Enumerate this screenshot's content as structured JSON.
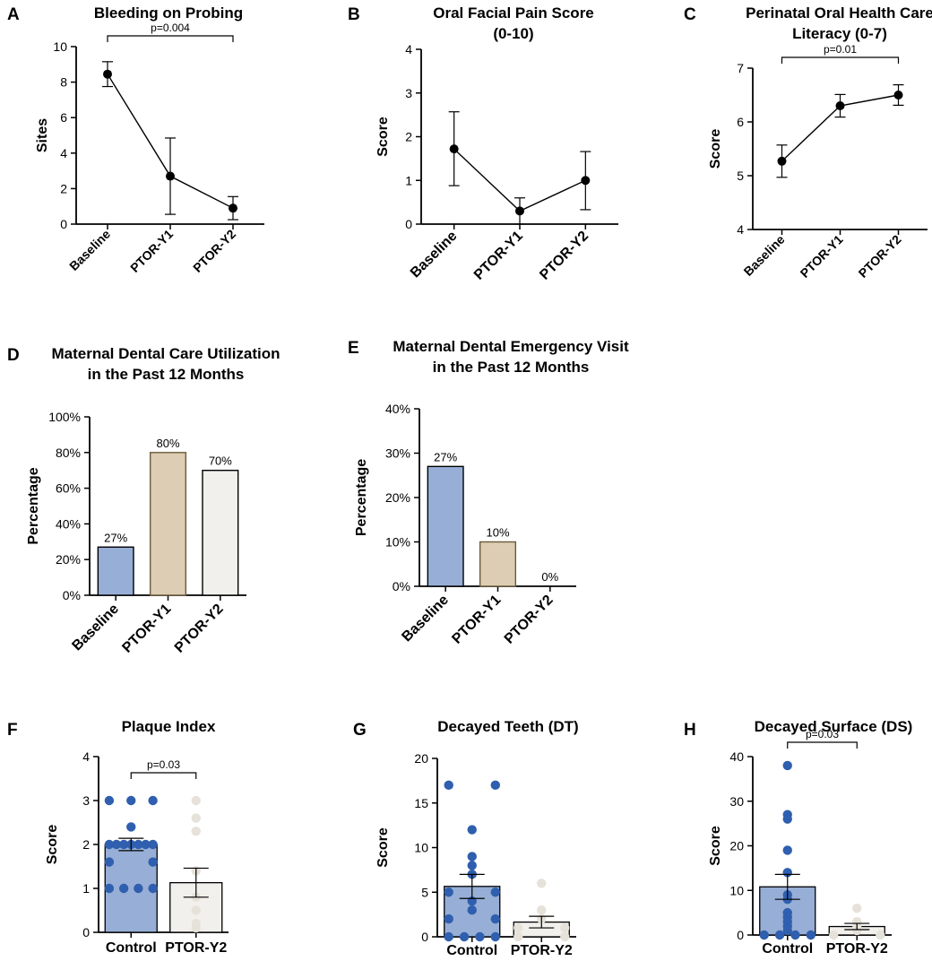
{
  "chart_data": [
    {
      "panel": "A",
      "type": "line",
      "title": "Bleeding on Probing",
      "xlabel": "",
      "ylabel": "Sites",
      "categories": [
        "Baseline",
        "PTOR-Y1",
        "PTOR-Y2"
      ],
      "values": [
        8.45,
        2.7,
        0.9
      ],
      "error_low": [
        7.75,
        0.55,
        0.25
      ],
      "error_high": [
        9.15,
        4.85,
        1.55
      ],
      "ylim": [
        0,
        10
      ],
      "yticks": [
        0,
        2,
        4,
        6,
        8,
        10
      ],
      "ytick_labels": [
        "0",
        "2",
        "4",
        "6",
        "8",
        "10"
      ],
      "significance": {
        "label": "p=0.004",
        "from": 0,
        "to": 2
      }
    },
    {
      "panel": "B",
      "type": "line",
      "title": "Oral Facial Pain Score",
      "title_line2": "(0-10)",
      "xlabel": "",
      "ylabel": "Score",
      "categories": [
        "Baseline",
        "PTOR-Y1",
        "PTOR-Y2"
      ],
      "values": [
        1.72,
        0.3,
        1.0
      ],
      "error_low": [
        0.88,
        0.0,
        0.33
      ],
      "error_high": [
        2.57,
        0.6,
        1.66
      ],
      "ylim": [
        0,
        4
      ],
      "yticks": [
        0,
        1,
        2,
        3,
        4
      ],
      "ytick_labels": [
        "0",
        "1",
        "2",
        "3",
        "4"
      ]
    },
    {
      "panel": "C",
      "type": "line",
      "title": "Perinatal Oral Health Care",
      "title_line2": "Literacy (0-7)",
      "xlabel": "",
      "ylabel": "Score",
      "categories": [
        "Baseline",
        "PTOR-Y1",
        "PTOR-Y2"
      ],
      "values": [
        5.27,
        6.3,
        6.5
      ],
      "error_low": [
        4.97,
        6.09,
        6.31
      ],
      "error_high": [
        5.57,
        6.51,
        6.69
      ],
      "ylim": [
        4,
        7
      ],
      "yticks": [
        4,
        5,
        6,
        7
      ],
      "ytick_labels": [
        "4",
        "5",
        "6",
        "7"
      ],
      "significance": {
        "label": "p=0.01",
        "from": 0,
        "to": 2
      }
    },
    {
      "panel": "D",
      "type": "bar",
      "title": "Maternal Dental Care Utilization",
      "title_line2": "in the Past 12 Months",
      "xlabel": "",
      "ylabel": "Percentage",
      "categories": [
        "Baseline",
        "PTOR-Y1",
        "PTOR-Y2"
      ],
      "values": [
        27,
        80,
        70
      ],
      "data_labels": [
        "27%",
        "80%",
        "70%"
      ],
      "bar_colors": [
        "#97aed6",
        "#dccdb4",
        "#f2f0ec"
      ],
      "ylim": [
        0,
        100
      ],
      "yticks": [
        0,
        20,
        40,
        60,
        80,
        100
      ],
      "ytick_labels": [
        "0%",
        "20%",
        "40%",
        "60%",
        "80%",
        "100%"
      ]
    },
    {
      "panel": "E",
      "type": "bar",
      "title": "Maternal Dental Emergency Visit",
      "title_line2": "in the Past 12 Months",
      "xlabel": "",
      "ylabel": "Percentage",
      "categories": [
        "Baseline",
        "PTOR-Y1",
        "PTOR-Y2"
      ],
      "values": [
        27,
        10,
        0
      ],
      "data_labels": [
        "27%",
        "10%",
        "0%"
      ],
      "bar_colors": [
        "#97aed6",
        "#dccdb4",
        "#f2f0ec"
      ],
      "ylim": [
        0,
        40
      ],
      "yticks": [
        0,
        10,
        20,
        30,
        40
      ],
      "ytick_labels": [
        "0%",
        "10%",
        "20%",
        "30%",
        "40%"
      ]
    },
    {
      "panel": "F",
      "type": "scatter",
      "title": "Plaque Index",
      "xlabel": "",
      "ylabel": "Score",
      "categories": [
        "Control",
        "PTOR-Y2"
      ],
      "bar_values": [
        2.0,
        1.13
      ],
      "error_low": [
        1.86,
        0.8
      ],
      "error_high": [
        2.14,
        1.46
      ],
      "bar_colors": [
        "#97aed6",
        "#f2f0ec"
      ],
      "point_colors": [
        "#2f5fae",
        "#e6e2da"
      ],
      "points": [
        [
          3.0,
          3.0,
          3.0,
          2.4,
          2.0,
          2.0,
          2.0,
          2.0,
          2.0,
          2.0,
          2.0,
          1.6,
          1.6,
          1.0,
          1.0,
          1.0,
          1.0
        ],
        [
          3.0,
          2.6,
          2.3,
          1.4,
          0.8,
          0.5,
          0.2,
          0.1
        ]
      ],
      "ylim": [
        0,
        4
      ],
      "yticks": [
        0,
        1,
        2,
        3,
        4
      ],
      "ytick_labels": [
        "0",
        "1",
        "2",
        "3",
        "4"
      ],
      "significance": {
        "label": "p=0.03",
        "from": 0,
        "to": 1
      }
    },
    {
      "panel": "G",
      "type": "scatter",
      "title": "Decayed Teeth (DT)",
      "xlabel": "",
      "ylabel": "Score",
      "categories": [
        "Control",
        "PTOR-Y2"
      ],
      "bar_values": [
        5.65,
        1.65
      ],
      "error_low": [
        4.3,
        1.0
      ],
      "error_high": [
        7.0,
        2.3
      ],
      "bar_colors": [
        "#97aed6",
        "#f2f0ec"
      ],
      "point_colors": [
        "#2f5fae",
        "#e6e2da"
      ],
      "points": [
        [
          17,
          17,
          12,
          9,
          8,
          7,
          5,
          5,
          4,
          3,
          2,
          2,
          0,
          0,
          0,
          0
        ],
        [
          6,
          3,
          2,
          1,
          1,
          0,
          0
        ]
      ],
      "ylim": [
        0,
        20
      ],
      "yticks": [
        0,
        5,
        10,
        15,
        20
      ],
      "ytick_labels": [
        "0",
        "5",
        "10",
        "15",
        "20"
      ]
    },
    {
      "panel": "H",
      "type": "scatter",
      "title": "Decayed Surface (DS)",
      "xlabel": "",
      "ylabel": "Score",
      "categories": [
        "Control",
        "PTOR-Y2"
      ],
      "bar_values": [
        10.8,
        1.9
      ],
      "error_low": [
        8.0,
        1.2
      ],
      "error_high": [
        13.6,
        2.6
      ],
      "bar_colors": [
        "#97aed6",
        "#f2f0ec"
      ],
      "point_colors": [
        "#2f5fae",
        "#e6e2da"
      ],
      "points": [
        [
          38,
          27,
          26,
          19,
          14,
          9,
          8,
          5,
          4,
          3,
          2,
          1,
          0,
          0,
          0,
          0
        ],
        [
          6,
          3,
          2,
          1,
          0,
          0
        ]
      ],
      "ylim": [
        0,
        40
      ],
      "yticks": [
        0,
        10,
        20,
        30,
        40
      ],
      "ytick_labels": [
        "0",
        "10",
        "20",
        "30",
        "40"
      ],
      "significance": {
        "label": "p=0.03",
        "from": 0,
        "to": 1
      }
    }
  ]
}
